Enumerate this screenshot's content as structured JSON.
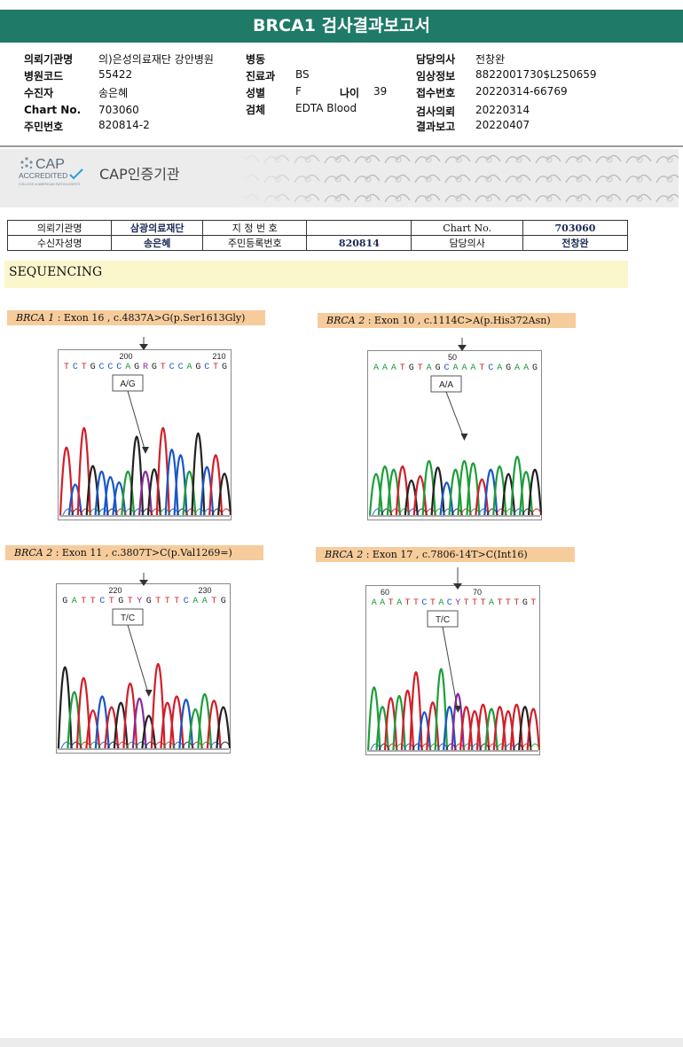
{
  "header": {
    "title": "BRCA1 검사결과보고서"
  },
  "patient_info": {
    "col1": [
      {
        "label": "의뢰기관명",
        "value": "의)은성의료재단 강안병원"
      },
      {
        "label": "병원코드",
        "value": "55422"
      },
      {
        "label": "수진자",
        "value": "송은혜"
      },
      {
        "label": "Chart No.",
        "value": "703060"
      },
      {
        "label": "주민번호",
        "value": "820814-2"
      }
    ],
    "col2": [
      {
        "label": "병동",
        "value": ""
      },
      {
        "label": "진료과",
        "value": "BS"
      },
      {
        "label": "성별",
        "value": "F"
      },
      {
        "label": "검체",
        "value": "EDTA Blood"
      }
    ],
    "age": {
      "label": "나이",
      "value": "39"
    },
    "col3": [
      {
        "label": "담당의사",
        "value": "전창완"
      },
      {
        "label": "임상정보",
        "value": "8822001730$L250659"
      },
      {
        "label": "접수번호",
        "value": "20220314-66769"
      },
      {
        "label": "검사의뢰",
        "value": "20220314"
      },
      {
        "label": "결과보고",
        "value": "20220407"
      }
    ]
  },
  "cap": {
    "logo_top": "CAP",
    "logo_mid": "ACCREDITED",
    "logo_small": "COLLEGE of AMERICAN PATHOLOGISTS",
    "title": "CAP인증기관"
  },
  "embedded_table": {
    "r1": [
      "의뢰기관명",
      "삼광의료재단",
      "지 정 번 호",
      "",
      "Chart No.",
      "703060"
    ],
    "r2": [
      "수신자성명",
      "송은혜",
      "주민등록번호",
      "820814",
      "담당의사",
      "전창완"
    ]
  },
  "section": {
    "title": "SEQUENCING"
  },
  "variants": [
    {
      "gene": "BRCA 1",
      "detail": " : Exon 16 , c.4837A>G(p.Ser1613Gly)",
      "seq": "TCTGCCCAGRGTCCAGCTG",
      "pos1": "200",
      "pos2": "210",
      "call": "A/G"
    },
    {
      "gene": "BRCA 2",
      "detail": " : Exon 10 , c.1114C>A(p.His372Asn)",
      "seq": "AAATGTAGCAAATCAGAAG",
      "pos1": "50",
      "pos2": "",
      "call": "A/A"
    },
    {
      "gene": "BRCA 2",
      "detail": " : Exon 11 , c.3807T>C(p.Val1269=)",
      "seq": "GATTCTGTYGTTTCAATG",
      "pos1": "220",
      "pos2": "230",
      "call": "T/C"
    },
    {
      "gene": "BRCA 2",
      "detail": " : Exon 17 , c.7806-14T>C(Int16)",
      "seq": "AATATTCTACYTTTATTTGT",
      "pos1": "60",
      "pos2": "70",
      "call": "T/C"
    }
  ],
  "colors": {
    "title_bar": "#1f7a67",
    "variant_label": "#f6cc9c",
    "section_bar": "#fbf7cc",
    "A": "#1e9e3a",
    "C": "#1a56c8",
    "G": "#222222",
    "T": "#d11f2a"
  }
}
